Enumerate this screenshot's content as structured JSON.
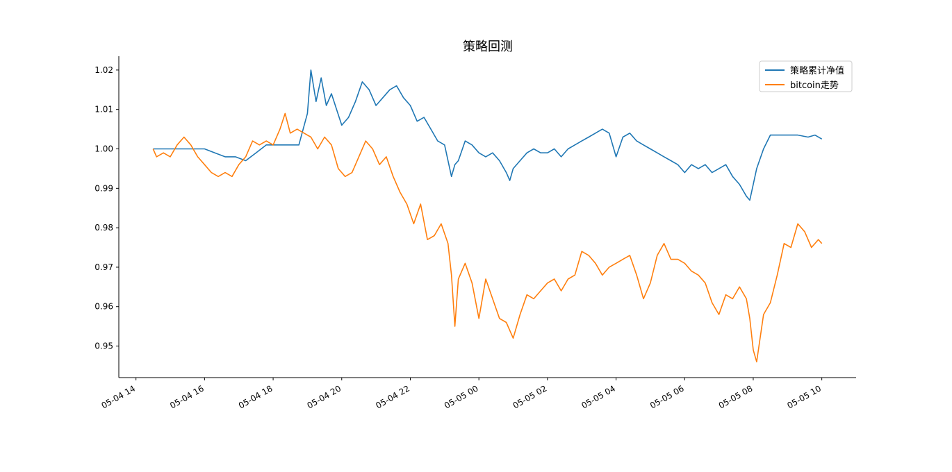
{
  "chart_data": {
    "type": "line",
    "title": "策略回测",
    "xlabel": "",
    "ylabel": "",
    "legend_position": "top-right",
    "grid": false,
    "x_ticks": [
      "05-04 14",
      "05-04 16",
      "05-04 18",
      "05-04 20",
      "05-04 22",
      "05-05 00",
      "05-05 02",
      "05-05 04",
      "05-05 06",
      "05-05 08",
      "05-05 10"
    ],
    "x_tick_hours": [
      14,
      16,
      18,
      20,
      22,
      24,
      26,
      28,
      30,
      32,
      34
    ],
    "xlim_hours": [
      13.5,
      35.0
    ],
    "y_ticks": [
      "0.95",
      "0.96",
      "0.97",
      "0.98",
      "0.99",
      "1.00",
      "1.01",
      "1.02"
    ],
    "y_tick_values": [
      0.95,
      0.96,
      0.97,
      0.98,
      0.99,
      1.0,
      1.01,
      1.02
    ],
    "ylim": [
      0.942,
      1.0235
    ],
    "series": [
      {
        "name": "策略累计净值",
        "color": "#1f77b4",
        "x_hours": [
          14.5,
          14.8,
          15.2,
          15.6,
          16.0,
          16.3,
          16.6,
          16.9,
          17.2,
          17.5,
          17.8,
          18.0,
          18.3,
          18.6,
          18.75,
          19.0,
          19.1,
          19.25,
          19.4,
          19.55,
          19.7,
          19.85,
          20.0,
          20.2,
          20.4,
          20.6,
          20.8,
          21.0,
          21.2,
          21.4,
          21.6,
          21.8,
          22.0,
          22.2,
          22.4,
          22.6,
          22.8,
          23.0,
          23.2,
          23.3,
          23.4,
          23.6,
          23.8,
          24.0,
          24.2,
          24.4,
          24.6,
          24.8,
          24.9,
          25.0,
          25.2,
          25.4,
          25.6,
          25.8,
          26.0,
          26.2,
          26.4,
          26.6,
          26.8,
          27.0,
          27.2,
          27.4,
          27.6,
          27.8,
          28.0,
          28.2,
          28.4,
          28.6,
          28.8,
          29.0,
          29.2,
          29.4,
          29.6,
          29.8,
          30.0,
          30.2,
          30.4,
          30.6,
          30.8,
          31.0,
          31.2,
          31.4,
          31.6,
          31.8,
          31.9,
          32.0,
          32.1,
          32.3,
          32.5,
          32.7,
          33.0,
          33.3,
          33.6,
          33.8,
          34.0
        ],
        "values": [
          1.0,
          1.0,
          1.0,
          1.0,
          1.0,
          0.999,
          0.998,
          0.998,
          0.997,
          0.999,
          1.001,
          1.001,
          1.001,
          1.001,
          1.001,
          1.009,
          1.02,
          1.012,
          1.018,
          1.011,
          1.014,
          1.01,
          1.006,
          1.008,
          1.012,
          1.017,
          1.015,
          1.011,
          1.013,
          1.015,
          1.016,
          1.013,
          1.011,
          1.007,
          1.008,
          1.005,
          1.002,
          1.001,
          0.993,
          0.996,
          0.997,
          1.002,
          1.001,
          0.999,
          0.998,
          0.999,
          0.997,
          0.994,
          0.992,
          0.995,
          0.997,
          0.999,
          1.0,
          0.999,
          0.999,
          1.0,
          0.998,
          1.0,
          1.001,
          1.002,
          1.003,
          1.004,
          1.005,
          1.004,
          0.998,
          1.003,
          1.004,
          1.002,
          1.001,
          1.0,
          0.999,
          0.998,
          0.997,
          0.996,
          0.994,
          0.996,
          0.995,
          0.996,
          0.994,
          0.995,
          0.996,
          0.993,
          0.991,
          0.988,
          0.987,
          0.991,
          0.995,
          1.0,
          1.0035,
          1.0035,
          1.0035,
          1.0035,
          1.003,
          1.0035,
          1.0025
        ]
      },
      {
        "name": "bitcoin走势",
        "color": "#ff7f0e",
        "x_hours": [
          14.5,
          14.6,
          14.8,
          15.0,
          15.2,
          15.4,
          15.6,
          15.8,
          16.0,
          16.2,
          16.4,
          16.6,
          16.8,
          17.0,
          17.2,
          17.4,
          17.6,
          17.8,
          18.0,
          18.2,
          18.35,
          18.5,
          18.7,
          18.9,
          19.1,
          19.3,
          19.5,
          19.7,
          19.9,
          20.1,
          20.3,
          20.5,
          20.7,
          20.9,
          21.1,
          21.3,
          21.5,
          21.7,
          21.9,
          22.1,
          22.3,
          22.5,
          22.7,
          22.9,
          23.1,
          23.2,
          23.3,
          23.4,
          23.6,
          23.8,
          24.0,
          24.2,
          24.4,
          24.6,
          24.8,
          25.0,
          25.2,
          25.4,
          25.6,
          25.8,
          26.0,
          26.2,
          26.4,
          26.6,
          26.8,
          27.0,
          27.2,
          27.4,
          27.6,
          27.8,
          28.0,
          28.2,
          28.4,
          28.6,
          28.8,
          29.0,
          29.2,
          29.4,
          29.6,
          29.8,
          30.0,
          30.2,
          30.4,
          30.6,
          30.8,
          31.0,
          31.2,
          31.4,
          31.6,
          31.8,
          31.9,
          32.0,
          32.1,
          32.3,
          32.5,
          32.7,
          32.9,
          33.1,
          33.3,
          33.5,
          33.7,
          33.9,
          34.0
        ],
        "values": [
          1.0,
          0.998,
          0.999,
          0.998,
          1.001,
          1.003,
          1.001,
          0.998,
          0.996,
          0.994,
          0.993,
          0.994,
          0.993,
          0.996,
          0.998,
          1.002,
          1.001,
          1.002,
          1.001,
          1.005,
          1.009,
          1.004,
          1.005,
          1.004,
          1.003,
          1.0,
          1.003,
          1.001,
          0.995,
          0.993,
          0.994,
          0.998,
          1.002,
          1.0,
          0.996,
          0.998,
          0.993,
          0.989,
          0.986,
          0.981,
          0.986,
          0.977,
          0.978,
          0.981,
          0.976,
          0.968,
          0.955,
          0.967,
          0.971,
          0.966,
          0.957,
          0.967,
          0.962,
          0.957,
          0.956,
          0.952,
          0.958,
          0.963,
          0.962,
          0.964,
          0.966,
          0.967,
          0.964,
          0.967,
          0.968,
          0.974,
          0.973,
          0.971,
          0.968,
          0.97,
          0.971,
          0.972,
          0.973,
          0.968,
          0.962,
          0.966,
          0.973,
          0.976,
          0.972,
          0.972,
          0.971,
          0.969,
          0.968,
          0.966,
          0.961,
          0.958,
          0.963,
          0.962,
          0.965,
          0.962,
          0.957,
          0.949,
          0.946,
          0.958,
          0.961,
          0.968,
          0.976,
          0.975,
          0.981,
          0.979,
          0.975,
          0.977,
          0.976
        ]
      }
    ]
  }
}
